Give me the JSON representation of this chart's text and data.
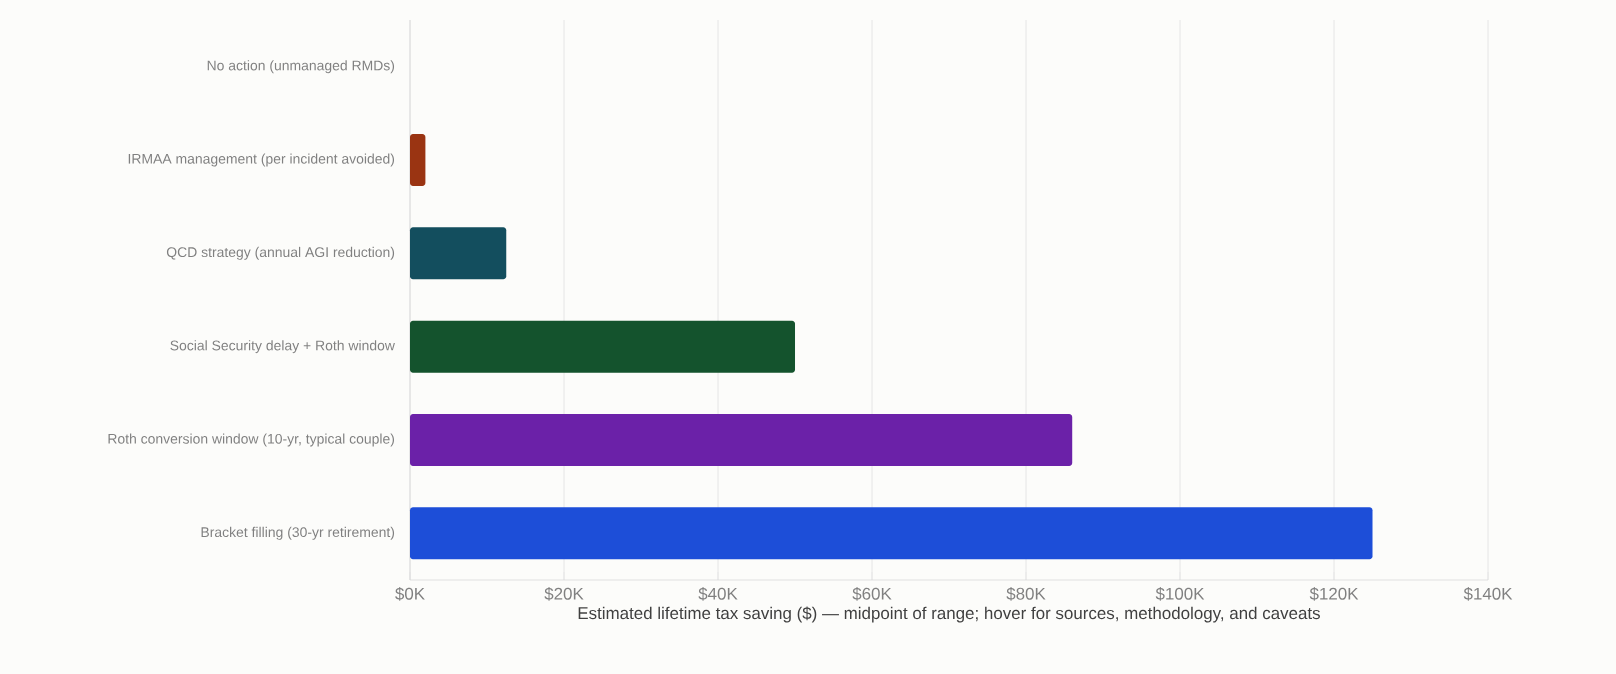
{
  "chart_data": {
    "type": "bar",
    "orientation": "horizontal",
    "xlabel": "Estimated lifetime tax saving ($) — midpoint of range; hover for sources, methodology, and caveats",
    "categories": [
      "No action (unmanaged RMDs)",
      "IRMAA management (per incident avoided)",
      "QCD strategy (annual AGI reduction)",
      "Social Security delay + Roth window",
      "Roth conversion window (10-yr, typical couple)",
      "Bracket filling (30-yr retirement)"
    ],
    "values": [
      0,
      2000,
      12500,
      50000,
      86000,
      125000
    ],
    "colors": [
      "#9ca3af",
      "#9a3412",
      "#134e5e",
      "#14532d",
      "#6b21a8",
      "#1d4ed8"
    ],
    "xlim": [
      0,
      140000
    ],
    "xticks": [
      {
        "value": 0,
        "label": "$0K"
      },
      {
        "value": 20000,
        "label": "$20K"
      },
      {
        "value": 40000,
        "label": "$40K"
      },
      {
        "value": 60000,
        "label": "$60K"
      },
      {
        "value": 80000,
        "label": "$80K"
      },
      {
        "value": 100000,
        "label": "$100K"
      },
      {
        "value": 120000,
        "label": "$120K"
      },
      {
        "value": 140000,
        "label": "$140K"
      }
    ],
    "grid": "x"
  }
}
